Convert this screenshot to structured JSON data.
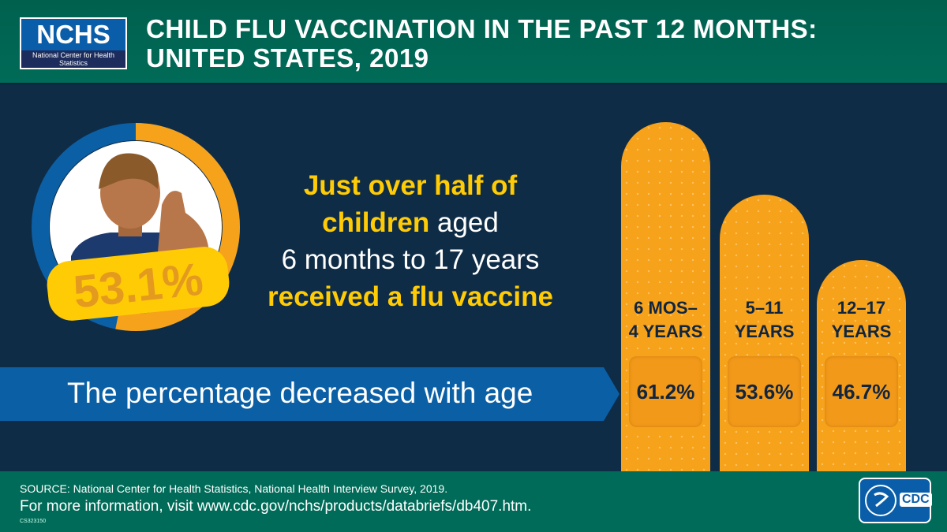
{
  "header": {
    "logo_text": "NCHS",
    "logo_subtitle": "National Center for Health Statistics",
    "title_line1": "CHILD FLU VACCINATION IN THE PAST 12 MONTHS:",
    "title_line2": "UNITED STATES, 2019"
  },
  "overall": {
    "value_label": "53.1%",
    "value": 53.1
  },
  "summary": {
    "part1": "Just over half of",
    "part2": "children",
    "part3": " aged",
    "part4": "6 months to 17 years",
    "part5": "received a flu vaccine"
  },
  "arrow_text": "The percentage decreased with age",
  "chart_data": {
    "type": "bar",
    "categories": [
      "6 MOS–4 YEARS",
      "5–11 YEARS",
      "12–17 YEARS"
    ],
    "category_lines": [
      [
        "6 MOS–",
        "4 YEARS"
      ],
      [
        "5–11",
        "YEARS"
      ],
      [
        "12–17",
        "YEARS"
      ]
    ],
    "values": [
      61.2,
      53.6,
      46.7
    ],
    "value_labels": [
      "61.2%",
      "53.6%",
      "46.7%"
    ],
    "unit": "%"
  },
  "footer": {
    "source": "SOURCE: National Center for Health Statistics, National Health Interview Survey, 2019.",
    "info": "For more information, visit www.cdc.gov/nchs/products/databriefs/db407.htm.",
    "code": "CS323150",
    "cdc_logo": "CDC"
  },
  "colors": {
    "header": "#006b58",
    "background": "#0f2c47",
    "bar": "#f7a21b",
    "highlight": "#ffcb05",
    "arrow": "#0b5fa5"
  }
}
